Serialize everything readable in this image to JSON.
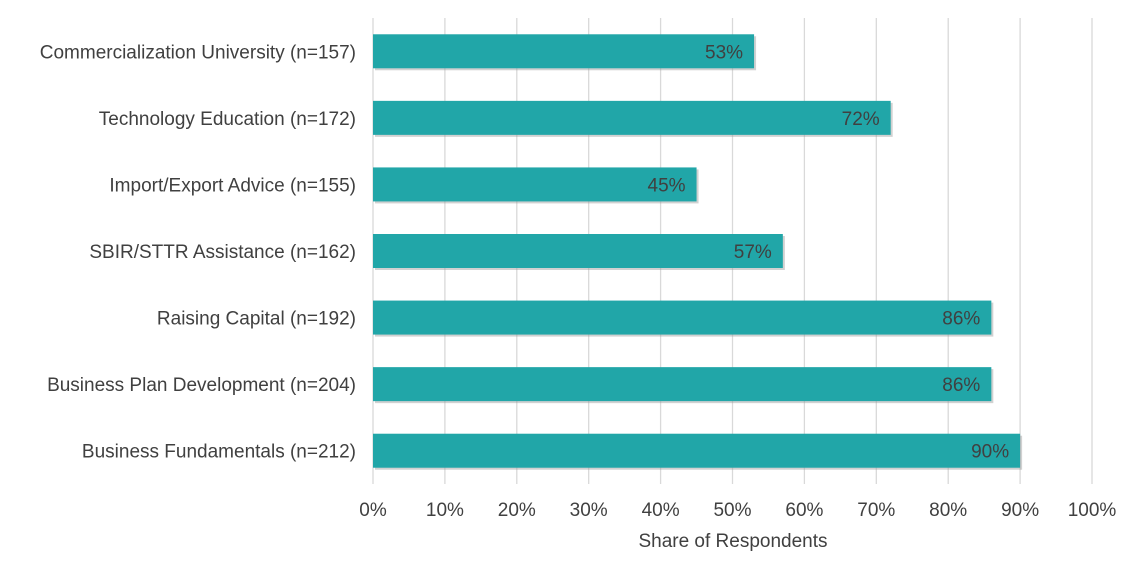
{
  "chart_data": {
    "type": "bar",
    "orientation": "horizontal",
    "categories": [
      "Commercialization University (n=157)",
      "Technology Education (n=172)",
      "Import/Export Advice (n=155)",
      "SBIR/STTR Assistance (n=162)",
      "Raising Capital (n=192)",
      "Business Plan Development (n=204)",
      "Business Fundamentals (n=212)"
    ],
    "values": [
      53,
      72,
      45,
      57,
      86,
      86,
      90
    ],
    "data_labels": [
      "53%",
      "72%",
      "45%",
      "57%",
      "86%",
      "86%",
      "90%"
    ],
    "xlabel": "Share of Respondents",
    "ylabel": "",
    "xlim": [
      0,
      100
    ],
    "xticks": [
      0,
      10,
      20,
      30,
      40,
      50,
      60,
      70,
      80,
      90,
      100
    ],
    "xtick_labels": [
      "0%",
      "10%",
      "20%",
      "30%",
      "40%",
      "50%",
      "60%",
      "70%",
      "80%",
      "90%",
      "100%"
    ],
    "grid": "vertical",
    "legend": "none",
    "bar_color": "#21a6a8",
    "grid_color": "#d9d9d9",
    "text_color": "#404040"
  }
}
